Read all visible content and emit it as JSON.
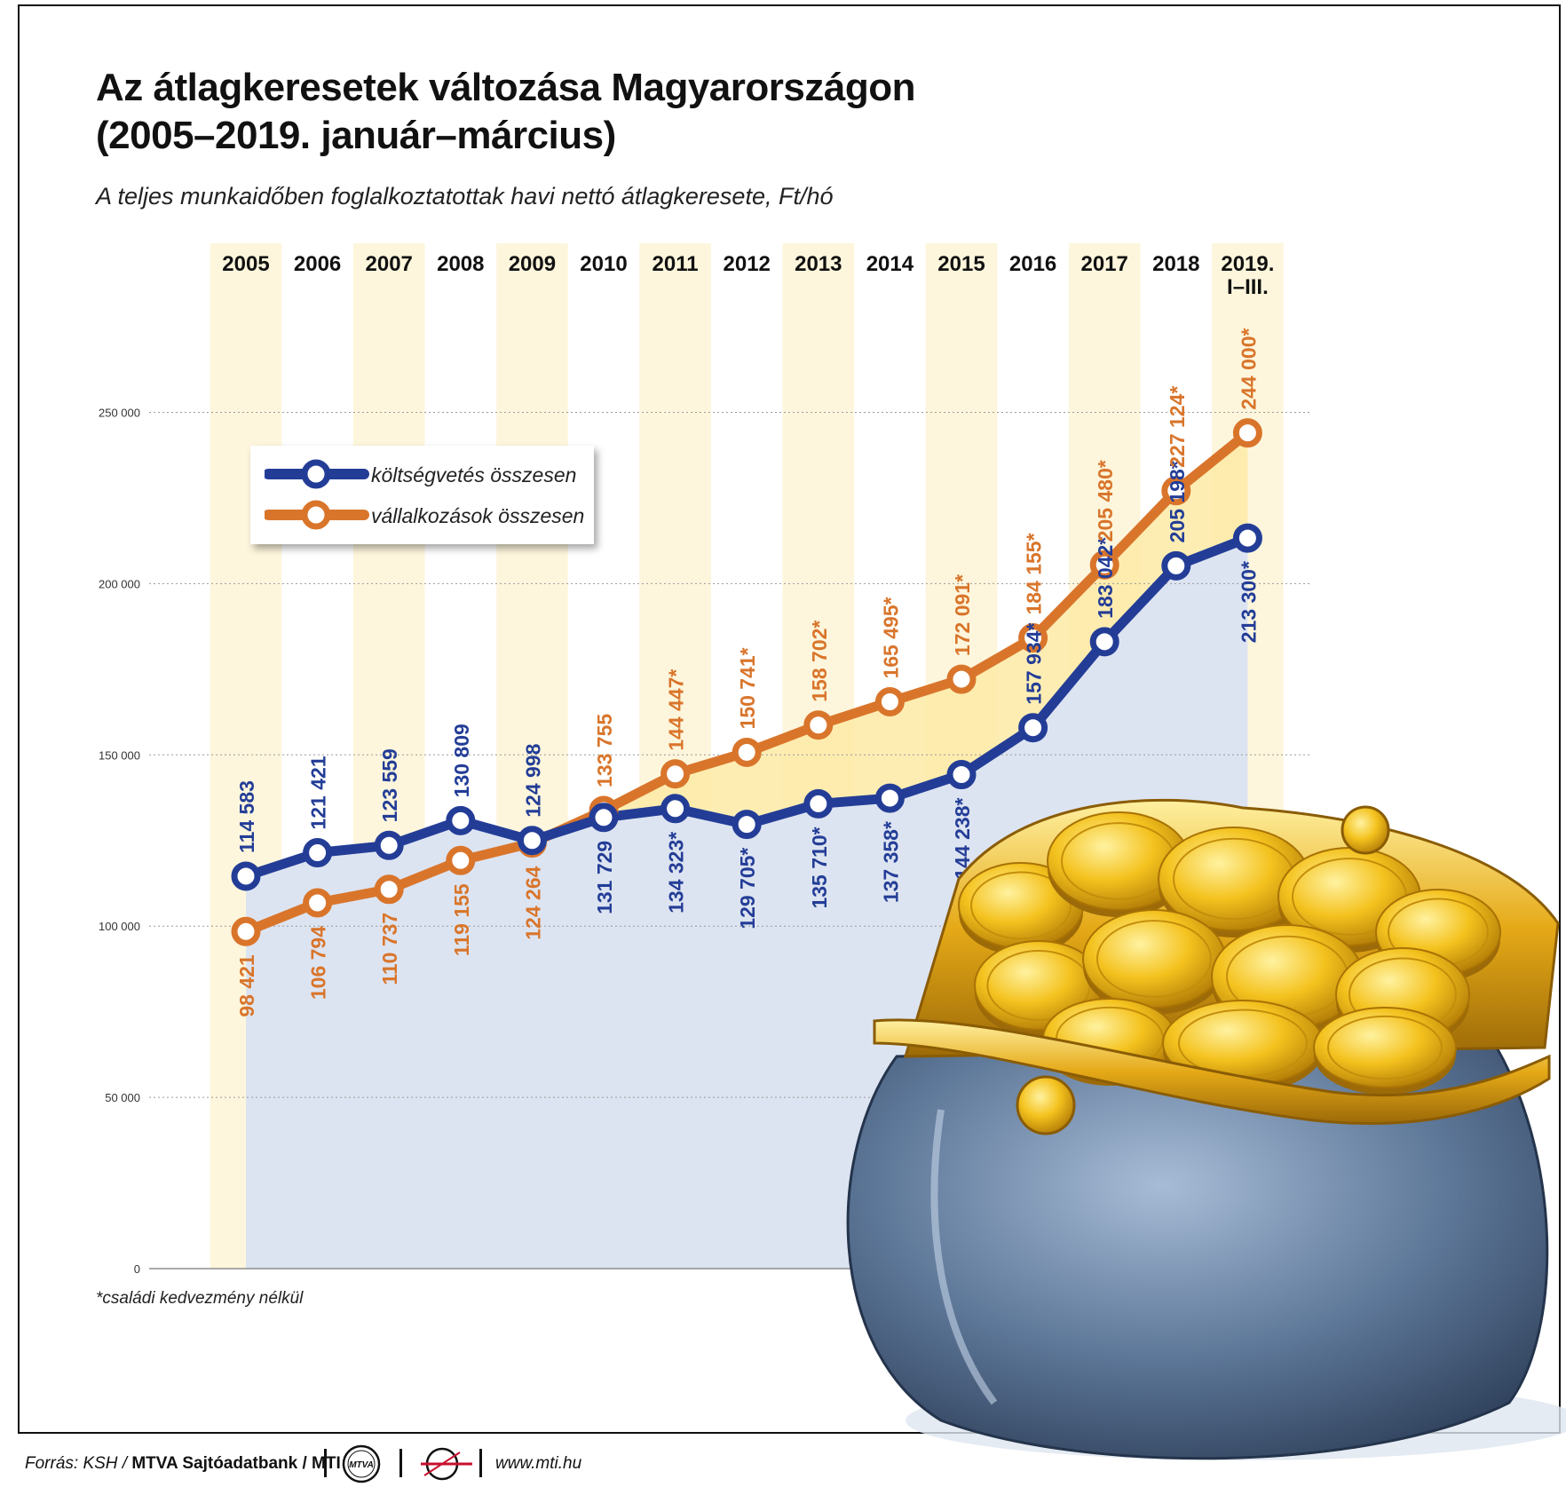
{
  "header": {
    "title_line1": "Az átlagkeresetek változása Magyarországon",
    "title_line2": "(2005–2019. január–március)",
    "subtitle": "A teljes munkaidőben foglalkoztatottak havi nettó átlagkeresete, Ft/hó"
  },
  "footnote": "*családi kedvezmény nélkül",
  "footer": {
    "source_prefix": "Forrás: KSH / ",
    "source_bold": "MTVA Sajtóadatbank / MTI",
    "logo_label": "MTVA",
    "url": "www.mti.hu"
  },
  "legend": {
    "items": [
      {
        "label": "költségvetés összesen",
        "color": "#233d97"
      },
      {
        "label": "vállalkozások összesen",
        "color": "#d9752b"
      }
    ]
  },
  "colors": {
    "blue": "#233d97",
    "orange": "#d9752b",
    "band": "#fdf6dc",
    "area_blue": "#dde4f1",
    "area_orange": "#fdeaa6"
  },
  "decoration": {
    "icon": "purse-with-gold-coins-illustration"
  },
  "chart_data": {
    "type": "line",
    "title": "Az átlagkeresetek változása Magyarországon (2005–2019. január–március)",
    "subtitle": "A teljes munkaidőben foglalkoztatottak havi nettó átlagkeresete, Ft/hó",
    "categories": [
      "2005",
      "2006",
      "2007",
      "2008",
      "2009",
      "2010",
      "2011",
      "2012",
      "2013",
      "2014",
      "2015",
      "2016",
      "2017",
      "2018",
      "2019. I–III."
    ],
    "category_lines": [
      [
        "2005"
      ],
      [
        "2006"
      ],
      [
        "2007"
      ],
      [
        "2008"
      ],
      [
        "2009"
      ],
      [
        "2010"
      ],
      [
        "2011"
      ],
      [
        "2012"
      ],
      [
        "2013"
      ],
      [
        "2014"
      ],
      [
        "2015"
      ],
      [
        "2016"
      ],
      [
        "2017"
      ],
      [
        "2018"
      ],
      [
        "2019.",
        "I–III."
      ]
    ],
    "ylim": [
      0,
      250000
    ],
    "yticks": [
      0,
      50000,
      100000,
      150000,
      200000,
      250000
    ],
    "ytick_labels": [
      "0",
      "50 000",
      "100 000",
      "150 000",
      "200 000",
      "250 000"
    ],
    "grid": true,
    "legend_position": "top-left",
    "series": [
      {
        "name": "költségvetés összesen",
        "color": "#233d97",
        "values": [
          114583,
          121421,
          123559,
          130809,
          124998,
          131729,
          134323,
          129705,
          135710,
          137358,
          144238,
          157934,
          183042,
          205198,
          213300
        ],
        "labels": [
          "114 583",
          "121 421",
          "123 559",
          "130 809",
          "124 998",
          "131 729",
          "134 323*",
          "129 705*",
          "135 710*",
          "137 358*",
          "144 238*",
          "157 934*",
          "183 042*",
          "205 198*",
          "213 300*"
        ],
        "label_side": [
          "above",
          "above",
          "above",
          "above",
          "above",
          "below",
          "below",
          "below",
          "below",
          "below",
          "below",
          "above",
          "above",
          "above",
          "below"
        ]
      },
      {
        "name": "vállalkozások összesen",
        "color": "#d9752b",
        "values": [
          98421,
          106794,
          110737,
          119155,
          124264,
          133755,
          144447,
          150741,
          158702,
          165495,
          172091,
          184155,
          205480,
          227124,
          244000
        ],
        "labels": [
          "98 421",
          "106 794",
          "110 737",
          "119 155",
          "124 264",
          "133 755",
          "144 447*",
          "150 741*",
          "158 702*",
          "165 495*",
          "172 091*",
          "184 155*",
          "205 480*",
          "227 124*",
          "244 000*"
        ],
        "label_side": [
          "below",
          "below",
          "below",
          "below",
          "below",
          "above",
          "above",
          "above",
          "above",
          "above",
          "above",
          "above",
          "above",
          "above",
          "above"
        ]
      }
    ]
  }
}
